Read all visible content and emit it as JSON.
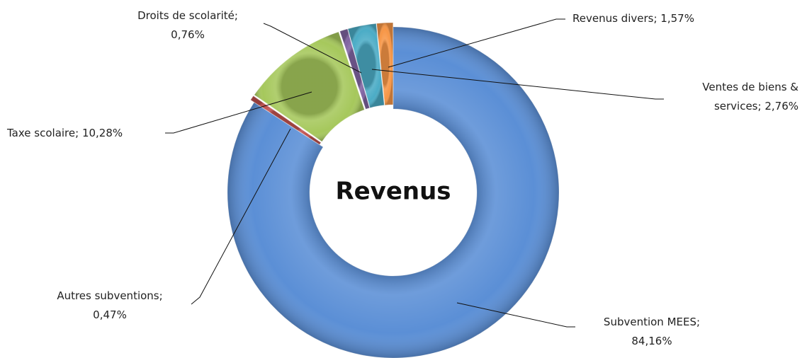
{
  "chart_data": {
    "type": "donut",
    "title": "Revenus",
    "categories": [
      "Subvention MEES;",
      "Autres subventions;",
      "Taxe scolaire;",
      "Droits de scolarité;",
      "Ventes de biens & services;",
      "Revenus divers;"
    ],
    "values": [
      84.16,
      0.47,
      10.28,
      0.76,
      2.76,
      1.57
    ],
    "value_labels": [
      "84,16%",
      "0,47%",
      "10,28%",
      "0,76%",
      "2,76%",
      "1,57%"
    ],
    "colors": [
      "#5b8fd6",
      "#c0504d",
      "#a6c85c",
      "#8064a2",
      "#4bacc6",
      "#f79646"
    ]
  }
}
